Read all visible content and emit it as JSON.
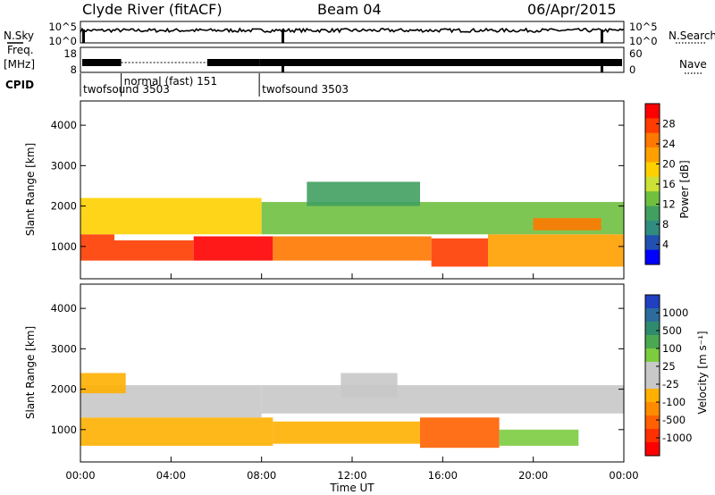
{
  "header": {
    "station": "Clyde River (fitACF)",
    "beam": "Beam 04",
    "date": "06/Apr/2015"
  },
  "panels": {
    "nsky_label": "N.Sky",
    "nsky_ticks": [
      "10^5",
      "10^0"
    ],
    "nsearch_ticks": [
      "10^5",
      "10^0"
    ],
    "nsearch_label": "N.Search",
    "freq_label": [
      "Freq.",
      "[MHz]"
    ],
    "freq_ticks": [
      "18",
      "8"
    ],
    "nave_ticks": [
      "60",
      "0"
    ],
    "nave_label": "Nave",
    "cpid_label": "CPID",
    "cpid_segments": [
      {
        "name": "twofsound 3503",
        "start_hour": 0.0,
        "end_hour": 1.8
      },
      {
        "name": "normal (fast) 151",
        "start_hour": 1.8,
        "end_hour": 7.9
      },
      {
        "name": "twofsound 3503",
        "start_hour": 7.9,
        "end_hour": 24.0
      }
    ]
  },
  "power_colorbar": {
    "label": "Power [dB]",
    "ticks": [
      "28",
      "24",
      "20",
      "16",
      "12",
      "8",
      "4"
    ],
    "colors": [
      "#ff0000",
      "#ff3c00",
      "#ff7800",
      "#ffa000",
      "#ffd000",
      "#cce035",
      "#70c040",
      "#40a060",
      "#308c80",
      "#2050b0",
      "#0000ff"
    ]
  },
  "velocity_colorbar": {
    "label": "Velocity [m s⁻¹]",
    "ticks": [
      "1000",
      "500",
      "100",
      "25",
      "-25",
      "-100",
      "-500",
      "-1000"
    ],
    "colors": [
      "#2040c0",
      "#2c6c9c",
      "#2e8b6e",
      "#4ca850",
      "#7ccc40",
      "#c8c8c8",
      "#c8c8c8",
      "#ffb000",
      "#ff8c00",
      "#ff6000",
      "#ff3000",
      "#ff0000"
    ]
  },
  "x_ticks": [
    "00:00",
    "04:00",
    "08:00",
    "12:00",
    "16:00",
    "20:00",
    "00:00"
  ],
  "x_title": "Time UT",
  "chart_data": [
    {
      "type": "heatmap",
      "title": "Power",
      "ylabel": "Slant Range [km]",
      "xlabel": "",
      "y_ticks": [
        "4000",
        "3000",
        "2000",
        "1000"
      ],
      "x_range_hours": [
        0,
        24
      ],
      "y_range_km": [
        200,
        4600
      ],
      "value_label": "Power [dB]",
      "value_range": [
        0,
        30
      ],
      "bands": [
        {
          "t0": 0.0,
          "t1": 1.5,
          "r0": 650,
          "r1": 1300,
          "value": 26
        },
        {
          "t0": 1.5,
          "t1": 5.0,
          "r0": 650,
          "r1": 1150,
          "value": 27
        },
        {
          "t0": 5.0,
          "t1": 8.5,
          "r0": 650,
          "r1": 1250,
          "value": 28
        },
        {
          "t0": 8.5,
          "t1": 15.5,
          "r0": 650,
          "r1": 1250,
          "value": 24
        },
        {
          "t0": 15.5,
          "t1": 18.0,
          "r0": 500,
          "r1": 1200,
          "value": 26
        },
        {
          "t0": 18.0,
          "t1": 24.0,
          "r0": 500,
          "r1": 1300,
          "value": 20
        },
        {
          "t0": 0.0,
          "t1": 8.0,
          "r0": 1300,
          "r1": 2200,
          "value": 18
        },
        {
          "t0": 8.0,
          "t1": 24.0,
          "r0": 1300,
          "r1": 2100,
          "value": 12
        },
        {
          "t0": 10.0,
          "t1": 15.0,
          "r0": 2000,
          "r1": 2600,
          "value": 9
        },
        {
          "t0": 20.0,
          "t1": 23.0,
          "r0": 1400,
          "r1": 1700,
          "value": 22
        }
      ]
    },
    {
      "type": "heatmap",
      "title": "Velocity",
      "ylabel": "Slant Range [km]",
      "xlabel": "Time UT",
      "y_ticks": [
        "4000",
        "3000",
        "2000",
        "1000"
      ],
      "x_range_hours": [
        0,
        24
      ],
      "y_range_km": [
        200,
        4600
      ],
      "value_label": "Velocity [m s⁻¹]",
      "value_range": [
        -1000,
        1000
      ],
      "bands": [
        {
          "t0": 0.0,
          "t1": 8.5,
          "r0": 600,
          "r1": 1300,
          "value": -300
        },
        {
          "t0": 8.5,
          "t1": 15.0,
          "r0": 650,
          "r1": 1200,
          "value": -200
        },
        {
          "t0": 15.0,
          "t1": 18.5,
          "r0": 550,
          "r1": 1300,
          "value": -600
        },
        {
          "t0": 18.5,
          "t1": 22.0,
          "r0": 600,
          "r1": 1000,
          "value": 300
        },
        {
          "t0": 0.0,
          "t1": 8.0,
          "r0": 1300,
          "r1": 2100,
          "value": 0
        },
        {
          "t0": 8.0,
          "t1": 24.0,
          "r0": 1400,
          "r1": 2100,
          "value": 0
        },
        {
          "t0": 11.5,
          "t1": 14.0,
          "r0": 1800,
          "r1": 2400,
          "value": -150
        },
        {
          "t0": 0.0,
          "t1": 2.0,
          "r0": 1900,
          "r1": 2400,
          "value": -300
        }
      ]
    }
  ]
}
